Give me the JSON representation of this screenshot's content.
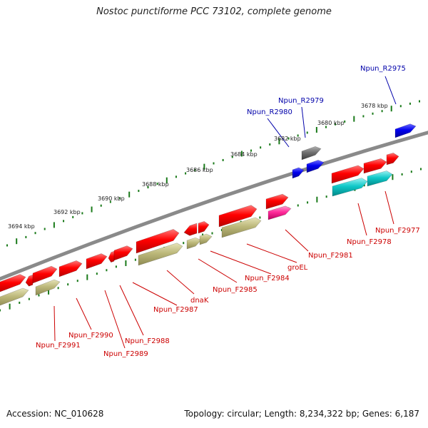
{
  "title": "Nostoc punctiforme PCC 73102, complete genome",
  "footer": {
    "accession": "Accession: NC_010628",
    "summary": "Topology: circular; Length: 8,234,322 bp; Genes: 6,187"
  },
  "colors": {
    "backbone": "#888888",
    "tick": "#1a7a1a",
    "forward_label": "#cc0000",
    "reverse_label": "#0000aa",
    "cds_forward": "#ff0000",
    "gene_forward": "#bcb87a",
    "trna_forward": "#ff2a9a",
    "rrna_forward": "#10c8c8",
    "cds_reverse": "#0000ee",
    "pseudo_reverse": "#707070"
  },
  "kbp_labels": [
    "3694 kbp",
    "3692 kbp",
    "3690 kbp",
    "3688 kbp",
    "3686 kbp",
    "3684 kbp",
    "3682 kbp",
    "3680 kbp",
    "3678 kbp"
  ],
  "reverse_labels": [
    "Npun_R2975",
    "Npun_R2979",
    "Npun_R2980"
  ],
  "forward_labels": [
    "Npun_F2977",
    "Npun_F2978",
    "Npun_F2981",
    "groEL",
    "Npun_F2984",
    "Npun_F2985",
    "dnaK",
    "Npun_F2987",
    "Npun_F2988",
    "Npun_F2989",
    "Npun_F2990",
    "Npun_F2991"
  ]
}
